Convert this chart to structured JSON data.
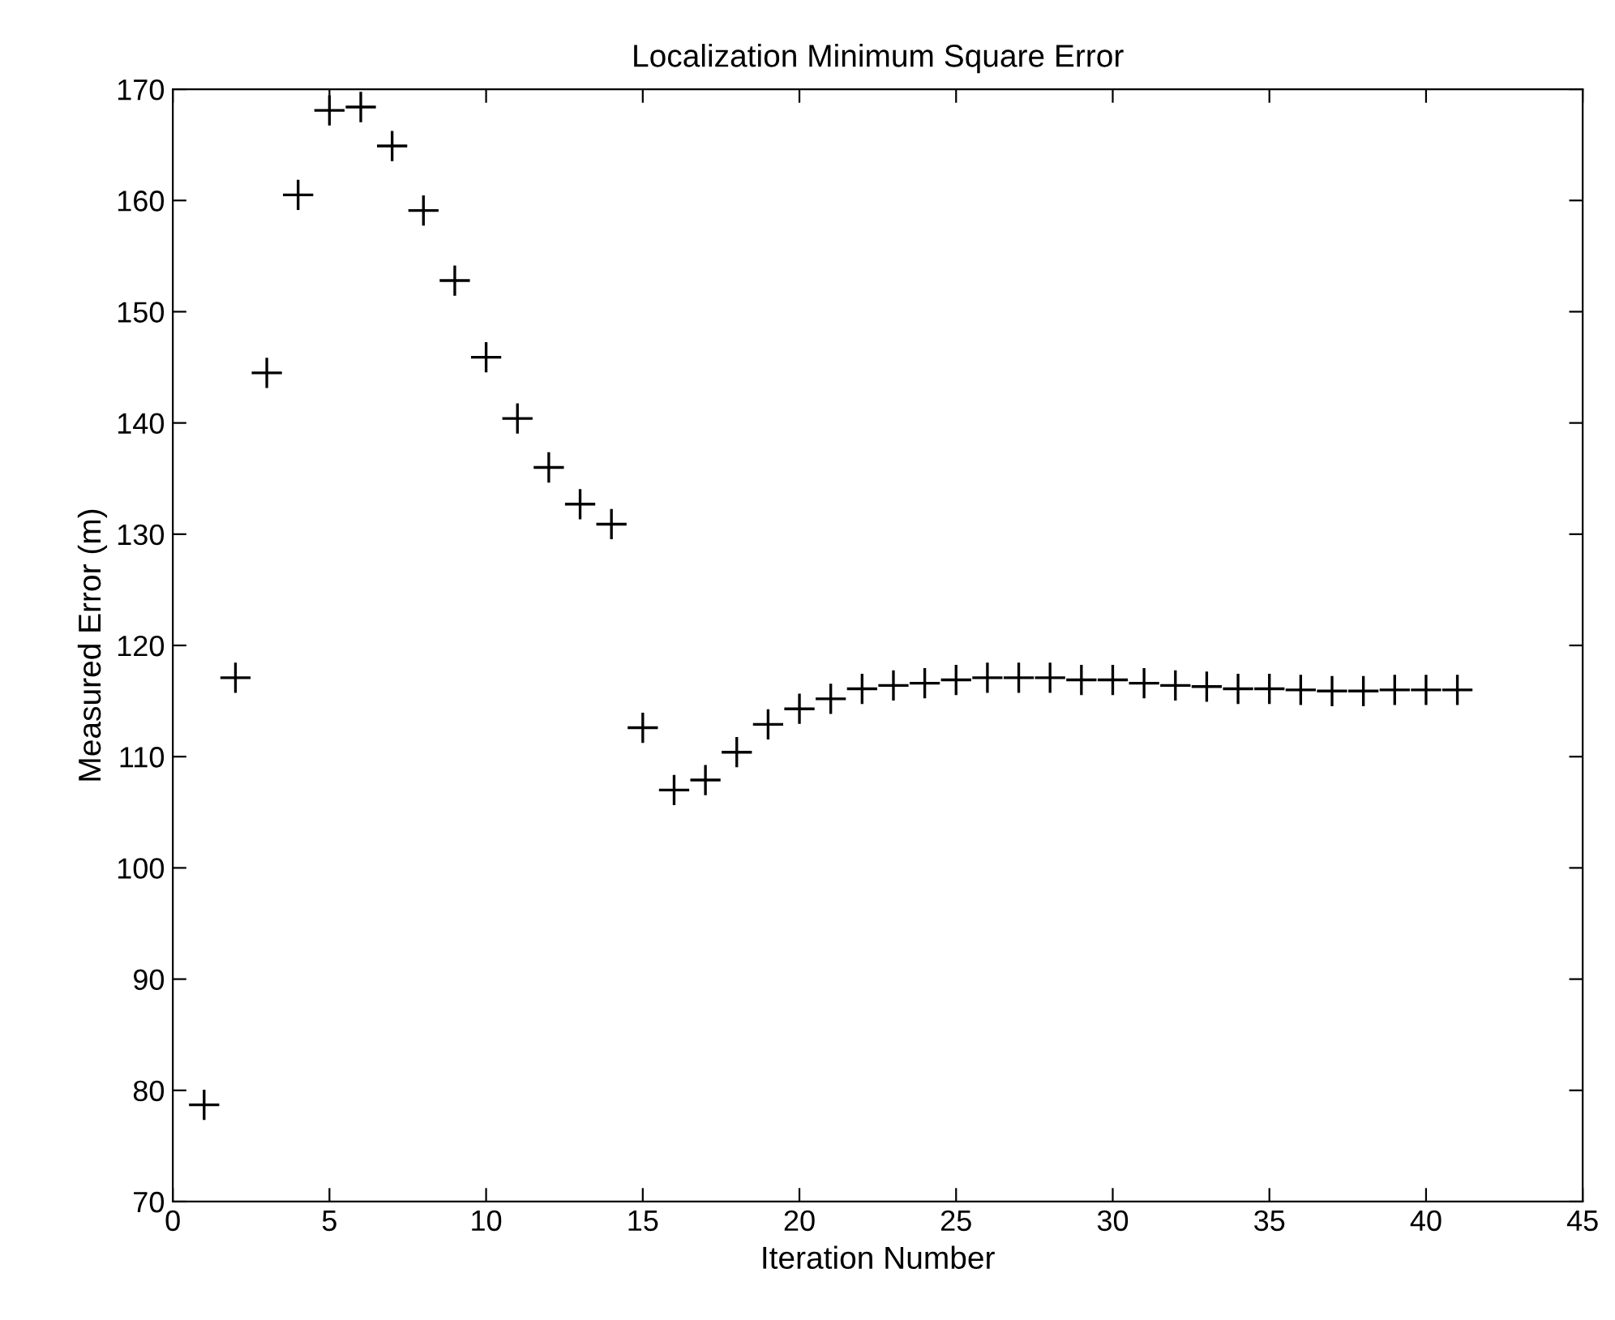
{
  "chart_data": {
    "type": "scatter",
    "title": "Localization Minimum Square Error",
    "xlabel": "Iteration Number",
    "ylabel": "Measured Error (m)",
    "x": [
      1,
      2,
      3,
      4,
      5,
      6,
      7,
      8,
      9,
      10,
      11,
      12,
      13,
      14,
      15,
      16,
      17,
      18,
      19,
      20,
      21,
      22,
      23,
      24,
      25,
      26,
      27,
      28,
      29,
      30,
      31,
      32,
      33,
      34,
      35,
      36,
      37,
      38,
      39,
      40,
      41
    ],
    "series": [
      {
        "color": "#000000",
        "values": [
          78.7,
          117.1,
          144.5,
          160.5,
          168.1,
          168.4,
          164.9,
          159.1,
          152.8,
          145.9,
          140.4,
          136.0,
          132.7,
          130.9,
          112.6,
          107.0,
          107.9,
          110.4,
          112.9,
          114.3,
          115.2,
          116.1,
          116.4,
          116.6,
          116.9,
          117.1,
          117.1,
          117.1,
          116.9,
          116.9,
          116.6,
          116.4,
          116.3,
          116.1,
          116.1,
          116.0,
          115.9,
          115.9,
          116.0,
          116.0,
          116.0
        ]
      }
    ],
    "marker": "cross",
    "xlim": [
      0,
      45
    ],
    "ylim": [
      70,
      170
    ],
    "xticks": [
      0,
      5,
      10,
      15,
      20,
      25,
      30,
      35,
      40,
      45
    ],
    "yticks": [
      70,
      80,
      90,
      100,
      110,
      120,
      130,
      140,
      150,
      160,
      170
    ],
    "grid": false,
    "legend": false
  }
}
